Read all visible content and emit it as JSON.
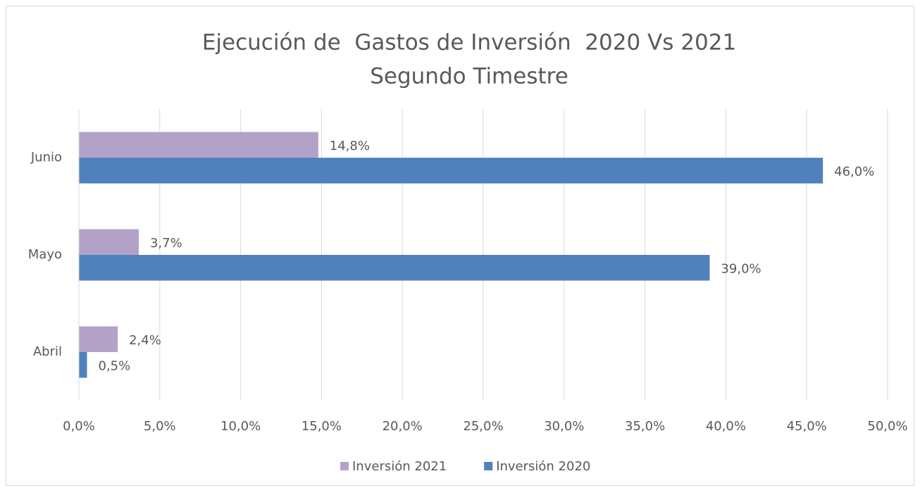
{
  "chart_data": {
    "type": "hbar",
    "title": "Ejecución de  Gastos de Inversión  2020 Vs 2021",
    "subtitle": "Segundo Timestre",
    "categories": [
      "Abril",
      "Mayo",
      "Junio"
    ],
    "series": [
      {
        "name": "Inversión 2021",
        "color": "#b3a2c7",
        "values": [
          2.4,
          3.7,
          14.8
        ],
        "value_labels": [
          "2,4%",
          "3,7%",
          "14,8%"
        ]
      },
      {
        "name": "Inversión 2020",
        "color": "#4f81bd",
        "values": [
          0.5,
          39.0,
          46.0
        ],
        "value_labels": [
          "0,5%",
          "39,0%",
          "46,0%"
        ]
      }
    ],
    "xlim": [
      0,
      50
    ],
    "xticks": [
      {
        "value": 0,
        "label": "0,0%"
      },
      {
        "value": 5,
        "label": "5,0%"
      },
      {
        "value": 10,
        "label": "10,0%"
      },
      {
        "value": 15,
        "label": "15,0%"
      },
      {
        "value": 20,
        "label": "20,0%"
      },
      {
        "value": 25,
        "label": "25,0%"
      },
      {
        "value": 30,
        "label": "30,0%"
      },
      {
        "value": 35,
        "label": "35,0%"
      },
      {
        "value": 40,
        "label": "40,0%"
      },
      {
        "value": 45,
        "label": "45,0%"
      },
      {
        "value": 50,
        "label": "50,0%"
      }
    ],
    "grid": true,
    "legend": "bottom"
  }
}
